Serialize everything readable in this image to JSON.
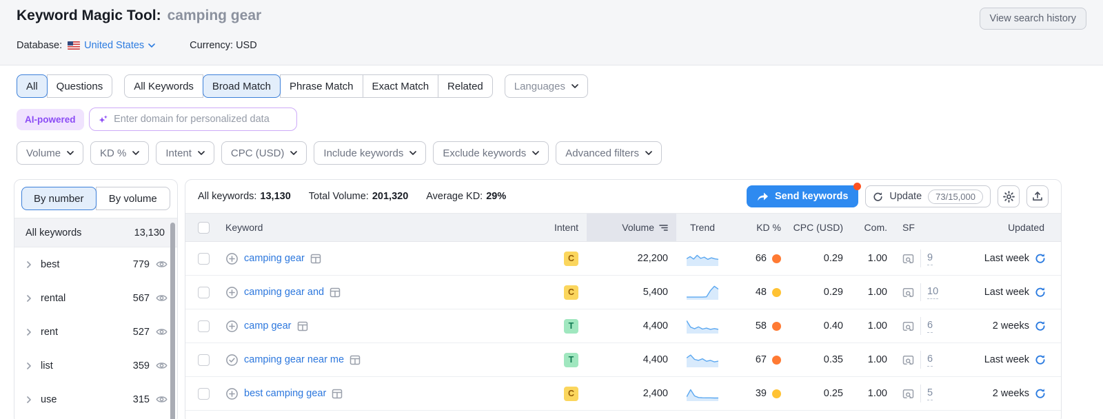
{
  "colors": {
    "accent_blue": "#2e8af0",
    "link_blue": "#2d7ce0",
    "notification_orange": "#fd5120",
    "kd_hard_orange": "#ff7a33",
    "kd_moderate_yellow": "#ffc233",
    "sparkline_blue": "#5aa7f0",
    "ai_purple": "#8b4bf5"
  },
  "header": {
    "title": "Keyword Magic Tool:",
    "query": "camping gear",
    "view_history": "View search history",
    "database_label": "Database:",
    "database_value": "United States",
    "currency_label": "Currency:",
    "currency_value": "USD"
  },
  "match_tabs": {
    "group1": [
      {
        "label": "All",
        "selected": true
      },
      {
        "label": "Questions",
        "selected": false
      }
    ],
    "group2": [
      {
        "label": "All Keywords",
        "selected": false
      },
      {
        "label": "Broad Match",
        "selected": true
      },
      {
        "label": "Phrase Match",
        "selected": false
      },
      {
        "label": "Exact Match",
        "selected": false
      },
      {
        "label": "Related",
        "selected": false
      }
    ],
    "languages": "Languages"
  },
  "ai_bar": {
    "badge": "AI-powered",
    "placeholder": "Enter domain for personalized data"
  },
  "filters": [
    "Volume",
    "KD %",
    "Intent",
    "CPC (USD)",
    "Include keywords",
    "Exclude keywords",
    "Advanced filters"
  ],
  "sidebar": {
    "tabs": [
      {
        "label": "By number",
        "selected": true
      },
      {
        "label": "By volume",
        "selected": false
      }
    ],
    "all_row": {
      "label": "All keywords",
      "count": "13,130"
    },
    "groups": [
      {
        "label": "best",
        "count": "779"
      },
      {
        "label": "rental",
        "count": "567"
      },
      {
        "label": "rent",
        "count": "527"
      },
      {
        "label": "list",
        "count": "359"
      },
      {
        "label": "use",
        "count": "315"
      }
    ]
  },
  "toolbar": {
    "stats": [
      {
        "label": "All keywords:",
        "value": "13,130"
      },
      {
        "label": "Total Volume:",
        "value": "201,320"
      },
      {
        "label": "Average KD:",
        "value": "29%"
      }
    ],
    "send_button": "Send keywords",
    "update_button": "Update",
    "update_quota": "73/15,000"
  },
  "table": {
    "columns": [
      "Keyword",
      "Intent",
      "Volume",
      "Trend",
      "KD %",
      "CPC (USD)",
      "Com.",
      "SF",
      "Updated"
    ],
    "intent_colors": {
      "C": {
        "bg": "#fbd65d",
        "fg": "#945d07"
      },
      "T": {
        "bg": "#a0e7bf",
        "fg": "#107a52"
      }
    },
    "rows": [
      {
        "keyword": "camping gear",
        "add_icon": "plus",
        "intent": "C",
        "volume": "22,200",
        "trend": [
          0.45,
          0.62,
          0.42,
          0.72,
          0.48,
          0.58,
          0.4,
          0.52,
          0.44,
          0.4
        ],
        "kd": "66",
        "kd_color": "#ff7a33",
        "cpc": "0.29",
        "com": "1.00",
        "sf": "9",
        "updated": "Last week"
      },
      {
        "keyword": "camping gear and",
        "add_icon": "plus",
        "intent": "C",
        "volume": "5,400",
        "trend": [
          0.08,
          0.08,
          0.08,
          0.08,
          0.08,
          0.1,
          0.6,
          0.95,
          0.72
        ],
        "kd": "48",
        "kd_color": "#ffc233",
        "cpc": "0.29",
        "com": "1.00",
        "sf": "10",
        "updated": "Last week"
      },
      {
        "keyword": "camp gear",
        "add_icon": "plus",
        "intent": "T",
        "volume": "4,400",
        "trend": [
          0.9,
          0.38,
          0.25,
          0.4,
          0.22,
          0.3,
          0.2,
          0.26,
          0.2
        ],
        "kd": "58",
        "kd_color": "#ff7a33",
        "cpc": "0.40",
        "com": "1.00",
        "sf": "6",
        "updated": "2 weeks"
      },
      {
        "keyword": "camping gear near me",
        "add_icon": "check",
        "intent": "T",
        "volume": "4,400",
        "trend": [
          0.62,
          0.85,
          0.5,
          0.42,
          0.55,
          0.35,
          0.42,
          0.3,
          0.36
        ],
        "kd": "67",
        "kd_color": "#ff7a33",
        "cpc": "0.35",
        "com": "1.00",
        "sf": "6",
        "updated": "Last week"
      },
      {
        "keyword": "best camping gear",
        "add_icon": "plus",
        "intent": "C",
        "volume": "2,400",
        "trend": [
          0.2,
          0.78,
          0.28,
          0.15,
          0.13,
          0.12,
          0.12,
          0.11,
          0.11
        ],
        "kd": "39",
        "kd_color": "#ffc233",
        "cpc": "0.25",
        "com": "1.00",
        "sf": "5",
        "updated": "2 weeks"
      }
    ]
  }
}
